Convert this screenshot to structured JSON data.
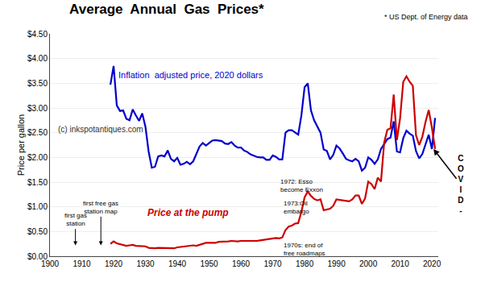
{
  "chart_data": {
    "type": "line",
    "title": "Average  Annual  Gas  Prices*",
    "subtitle": "* US Dept. of Energy data",
    "ylabel": "Price per gallon",
    "xlim": [
      1900,
      2022
    ],
    "ylim": [
      0,
      4.5
    ],
    "xticks": [
      1900,
      1910,
      1920,
      1930,
      1940,
      1950,
      1960,
      1970,
      1980,
      1990,
      2000,
      2010,
      2020
    ],
    "yticks": [
      {
        "value": 0.0,
        "label": "$0.00"
      },
      {
        "value": 0.5,
        "label": "$0.50"
      },
      {
        "value": 1.0,
        "label": "$1.00"
      },
      {
        "value": 1.5,
        "label": "$1.50"
      },
      {
        "value": 2.0,
        "label": "$2.00"
      },
      {
        "value": 2.5,
        "label": "$2.50"
      },
      {
        "value": 3.0,
        "label": "$3.00"
      },
      {
        "value": 3.5,
        "label": "$3.50"
      },
      {
        "value": 4.0,
        "label": "$4.00"
      },
      {
        "value": 4.5,
        "label": "$4.50"
      }
    ],
    "grid": "y",
    "x": [
      1919,
      1920,
      1921,
      1922,
      1923,
      1924,
      1925,
      1926,
      1927,
      1928,
      1929,
      1930,
      1931,
      1932,
      1933,
      1934,
      1935,
      1936,
      1937,
      1938,
      1939,
      1940,
      1941,
      1942,
      1943,
      1944,
      1945,
      1946,
      1947,
      1948,
      1949,
      1950,
      1951,
      1952,
      1953,
      1954,
      1955,
      1956,
      1957,
      1958,
      1959,
      1960,
      1961,
      1962,
      1963,
      1964,
      1965,
      1966,
      1967,
      1968,
      1969,
      1970,
      1971,
      1972,
      1973,
      1974,
      1975,
      1976,
      1977,
      1978,
      1979,
      1980,
      1981,
      1982,
      1983,
      1984,
      1985,
      1986,
      1987,
      1988,
      1989,
      1990,
      1991,
      1992,
      1993,
      1994,
      1995,
      1996,
      1997,
      1998,
      1999,
      2000,
      2001,
      2002,
      2003,
      2004,
      2005,
      2006,
      2007,
      2008,
      2009,
      2010,
      2011,
      2012,
      2013,
      2014,
      2015,
      2016,
      2017,
      2018,
      2019,
      2020,
      2021
    ],
    "series": [
      {
        "name": "Inflation  adjusted price, 2020 dollars",
        "color": "#0000cc",
        "values": [
          3.47,
          3.85,
          3.05,
          2.94,
          2.95,
          2.78,
          2.75,
          2.97,
          2.85,
          2.74,
          2.89,
          2.62,
          2.12,
          1.79,
          1.81,
          2.02,
          2.04,
          2.02,
          2.14,
          1.97,
          1.92,
          1.99,
          1.85,
          1.87,
          1.91,
          1.86,
          1.92,
          2.06,
          2.22,
          2.29,
          2.24,
          2.29,
          2.34,
          2.35,
          2.34,
          2.33,
          2.28,
          2.27,
          2.31,
          2.24,
          2.2,
          2.2,
          2.14,
          2.11,
          2.06,
          2.03,
          2.01,
          2.0,
          2.0,
          1.95,
          1.95,
          2.04,
          2.01,
          1.96,
          1.96,
          2.5,
          2.55,
          2.55,
          2.5,
          2.46,
          2.85,
          3.42,
          3.5,
          2.95,
          2.75,
          2.63,
          2.5,
          2.16,
          2.13,
          1.96,
          2.05,
          2.24,
          2.18,
          2.08,
          1.97,
          1.94,
          1.92,
          1.97,
          1.92,
          1.73,
          1.79,
          2.0,
          1.95,
          1.87,
          1.96,
          2.17,
          2.28,
          2.37,
          2.4,
          2.73,
          2.12,
          2.1,
          2.39,
          2.54,
          2.48,
          2.44,
          2.13,
          1.98,
          2.07,
          2.26,
          2.46,
          2.17,
          2.8
        ]
      },
      {
        "name": "Price at the pump",
        "color": "#cc0000",
        "values": [
          0.25,
          0.3,
          0.26,
          0.24,
          0.22,
          0.21,
          0.22,
          0.23,
          0.21,
          0.21,
          0.21,
          0.2,
          0.17,
          0.16,
          0.16,
          0.17,
          0.17,
          0.17,
          0.17,
          0.16,
          0.16,
          0.18,
          0.19,
          0.2,
          0.21,
          0.21,
          0.22,
          0.21,
          0.23,
          0.26,
          0.27,
          0.27,
          0.27,
          0.27,
          0.29,
          0.29,
          0.29,
          0.3,
          0.31,
          0.3,
          0.3,
          0.31,
          0.31,
          0.31,
          0.3,
          0.3,
          0.31,
          0.32,
          0.33,
          0.34,
          0.35,
          0.36,
          0.37,
          0.36,
          0.38,
          0.53,
          0.6,
          0.62,
          0.66,
          0.67,
          0.9,
          1.19,
          1.31,
          1.22,
          1.16,
          1.13,
          1.15,
          0.93,
          0.95,
          0.96,
          1.02,
          1.15,
          1.14,
          1.13,
          1.11,
          1.11,
          1.15,
          1.23,
          1.23,
          1.06,
          1.17,
          1.51,
          1.46,
          1.36,
          1.59,
          1.51,
          2.3,
          2.56,
          2.59,
          3.27,
          2.35,
          2.79,
          3.53,
          3.64,
          3.53,
          3.45,
          2.45,
          2.25,
          2.42,
          2.72,
          2.96,
          2.6,
          2.17
        ]
      }
    ],
    "annotations": [
      "(c) inkspotantiques.com",
      "first gas\nstation",
      "first free gas\nstation map",
      "1972: Esso\nbecome Exxon",
      "1973:Oil\nembargo",
      "1970s: end of\nfree roadmaps",
      "COVID-"
    ]
  }
}
